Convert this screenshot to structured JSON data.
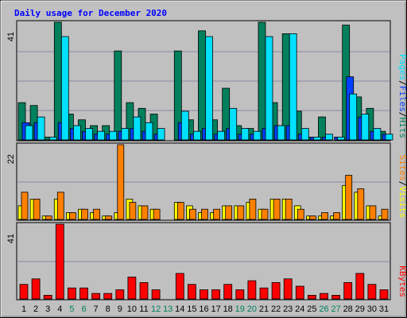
{
  "chart_data": {
    "type": "bar",
    "title": "Daily usage for December 2020",
    "colors": {
      "background": "#c0c0c0",
      "title": "#0000ff",
      "hits": "#00805c",
      "files": "#0040ff",
      "pages": "#00e0ff",
      "visits": "#ffff00",
      "sites": "#ff8000",
      "kbytes": "#ff0000",
      "weekend_day": "#00805c",
      "weekday": "#000000"
    },
    "days": [
      "1",
      "2",
      "3",
      "4",
      "5",
      "6",
      "7",
      "8",
      "9",
      "10",
      "11",
      "12",
      "13",
      "14",
      "15",
      "16",
      "17",
      "18",
      "19",
      "20",
      "21",
      "22",
      "23",
      "24",
      "25",
      "26",
      "27",
      "28",
      "29",
      "30",
      "31"
    ],
    "weekend_days": [
      "5",
      "6",
      "12",
      "13",
      "19",
      "20",
      "26",
      "27"
    ],
    "panels": {
      "top": {
        "max_label": "41",
        "ylim": [
          0,
          41
        ],
        "legend": [
          "Pages",
          "/",
          "Files",
          "/",
          "Hits"
        ],
        "series": [
          {
            "name": "Hits",
            "values": [
              13,
              12,
              1,
              41,
              9,
              7,
              5,
              5,
              31,
              13,
              11,
              9,
              0,
              31,
              7,
              38,
              7,
              18,
              5,
              4,
              41,
              13,
              37,
              10,
              1,
              8,
              0,
              40,
              15,
              11,
              3
            ]
          },
          {
            "name": "Files",
            "values": [
              6,
              6,
              0,
              6,
              4,
              3,
              2,
              2,
              3,
              4,
              3,
              2,
              0,
              6,
              2,
              4,
              2,
              4,
              2,
              2,
              4,
              5,
              5,
              2,
              1,
              1,
              1,
              22,
              8,
              3,
              2
            ]
          },
          {
            "name": "Pages",
            "values": [
              5,
              8,
              1,
              36,
              5,
              4,
              3,
              3,
              4,
              8,
              6,
              4,
              0,
              10,
              3,
              36,
              3,
              11,
              4,
              3,
              36,
              5,
              37,
              4,
              1,
              2,
              1,
              16,
              9,
              4,
              2
            ]
          }
        ]
      },
      "middle": {
        "max_label": "22",
        "ylim": [
          0,
          22
        ],
        "legend": [
          "Sites",
          "/",
          "Visits"
        ],
        "series": [
          {
            "name": "Visits",
            "values": [
              4,
              6,
              1,
              6,
              2,
              3,
              2,
              1,
              2,
              6,
              4,
              3,
              0,
              5,
              4,
              2,
              2,
              4,
              4,
              5,
              3,
              6,
              6,
              4,
              1,
              1,
              1,
              10,
              8,
              4,
              1
            ]
          },
          {
            "name": "Sites",
            "values": [
              8,
              6,
              1,
              8,
              2,
              3,
              3,
              1,
              22,
              5,
              4,
              3,
              0,
              5,
              3,
              3,
              3,
              4,
              4,
              6,
              3,
              6,
              6,
              3,
              1,
              2,
              2,
              13,
              9,
              4,
              3
            ]
          }
        ]
      },
      "bottom": {
        "max_label": "41",
        "ylim": [
          0,
          41
        ],
        "legend": [
          "KBytes"
        ],
        "series": [
          {
            "name": "KBytes",
            "values": [
              8,
              11,
              2,
              41,
              6,
              6,
              3,
              3,
              5,
              12,
              9,
              5,
              0,
              14,
              8,
              5,
              5,
              8,
              5,
              10,
              6,
              9,
              11,
              7,
              2,
              3,
              2,
              9,
              14,
              8,
              5
            ]
          }
        ]
      }
    }
  }
}
